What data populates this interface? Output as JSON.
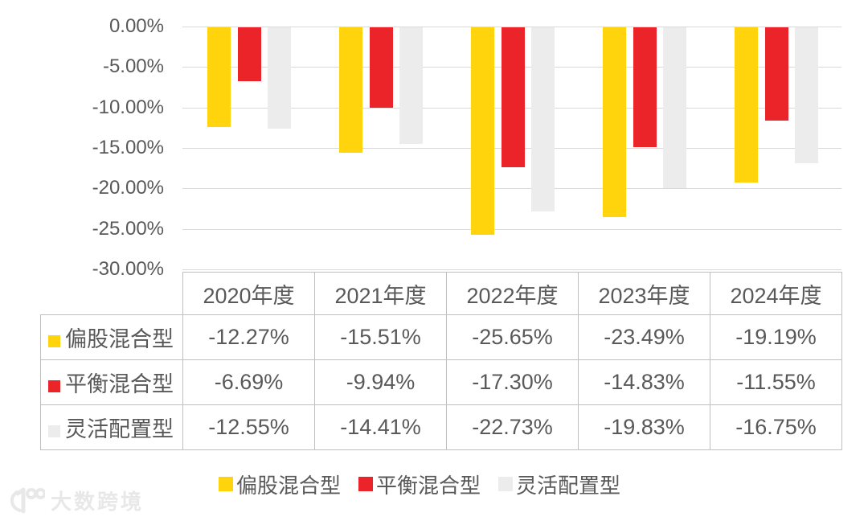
{
  "watermark": {
    "text": "大数跨境",
    "logo": "dashu-100-logo"
  },
  "colors": {
    "background": "#FFFFFF",
    "grid": "#D9D9D9",
    "table_border": "#BFBFBF",
    "text": "#595959",
    "watermark": "#E8E8E8"
  },
  "chart_data": {
    "type": "bar",
    "title": "",
    "xlabel": "",
    "ylabel": "",
    "categories": [
      "2020年度",
      "2021年度",
      "2022年度",
      "2023年度",
      "2024年度"
    ],
    "series": [
      {
        "name": "偏股混合型",
        "color": "#FFD40C",
        "values": [
          -12.27,
          -15.51,
          -25.65,
          -23.49,
          -19.19
        ]
      },
      {
        "name": "平衡混合型",
        "color": "#EA2428",
        "values": [
          -6.69,
          -9.94,
          -17.3,
          -14.83,
          -11.55
        ]
      },
      {
        "name": "灵活配置型",
        "color": "#ECECEC",
        "values": [
          -12.55,
          -14.41,
          -22.73,
          -19.83,
          -16.75
        ]
      }
    ],
    "ylim": [
      -30,
      0
    ],
    "ytick_labels": [
      "0.00%",
      "-5.00%",
      "-10.00%",
      "-15.00%",
      "-20.00%",
      "-25.00%",
      "-30.00%"
    ],
    "grid": true,
    "legend_position": "bottom",
    "data_table": {
      "shown": true,
      "decimals": 2,
      "value_suffix": "%"
    }
  }
}
